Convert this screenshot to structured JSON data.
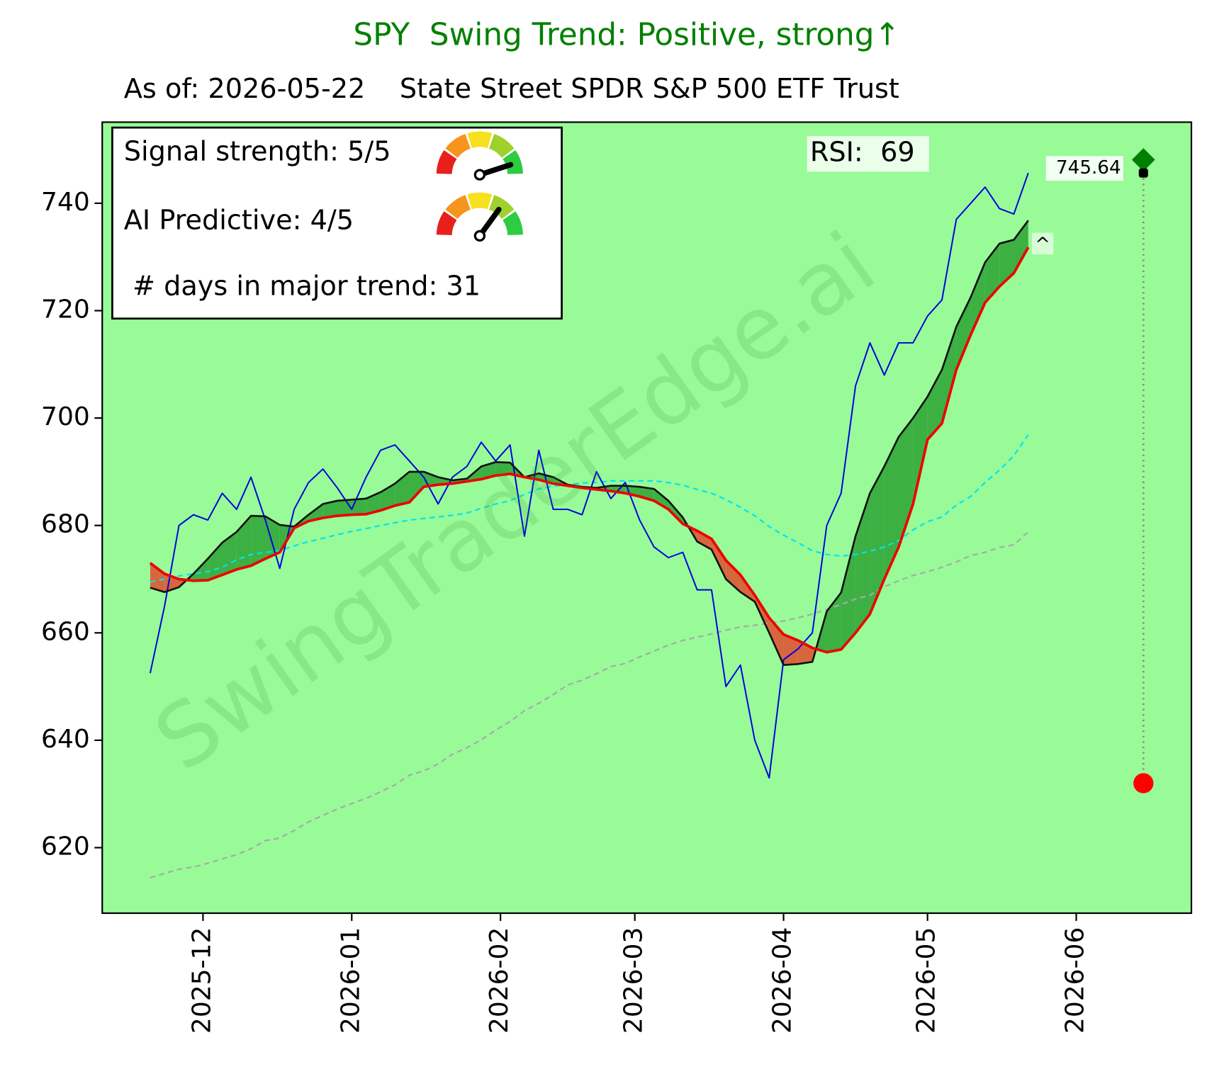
{
  "chart_data": {
    "type": "line",
    "title": "SPY  Swing Trend: Positive, strong↑",
    "title_color": "green",
    "subtitle": "As of: 2026-05-22    State Street SPDR S&P 500 ETF Trust",
    "watermark": "SwingTraderEdge.ai",
    "facecolor": "#98fb98",
    "xlim": [
      20402,
      20629
    ],
    "xticks": [
      {
        "value": 20423,
        "label": "2025-12"
      },
      {
        "value": 20454,
        "label": "2026-01"
      },
      {
        "value": 20485,
        "label": "2026-02"
      },
      {
        "value": 20513,
        "label": "2026-03"
      },
      {
        "value": 20544,
        "label": "2026-04"
      },
      {
        "value": 20574,
        "label": "2026-05"
      },
      {
        "value": 20605,
        "label": "2026-06"
      }
    ],
    "ylim": [
      607.8,
      755.1
    ],
    "yticks": [
      620,
      640,
      660,
      680,
      700,
      720,
      740
    ],
    "x": [
      20412,
      20415,
      20418,
      20421,
      20424,
      20427,
      20430,
      20433,
      20436,
      20439,
      20442,
      20445,
      20448,
      20451,
      20454,
      20457,
      20460,
      20463,
      20466,
      20469,
      20472,
      20475,
      20478,
      20481,
      20484,
      20487,
      20490,
      20493,
      20496,
      20499,
      20502,
      20505,
      20508,
      20511,
      20514,
      20517,
      20520,
      20523,
      20526,
      20529,
      20532,
      20535,
      20538,
      20541,
      20544,
      20547,
      20550,
      20553,
      20556,
      20559,
      20562,
      20565,
      20568,
      20571,
      20574,
      20577,
      20580,
      20583,
      20586,
      20589,
      20592,
      20595
    ],
    "series": [
      {
        "color": "#0000dd",
        "linestyle": "solid",
        "values": [
          652.5,
          665,
          680,
          682,
          681,
          686,
          683,
          689,
          681,
          672,
          683,
          688,
          690.5,
          687,
          683,
          689,
          694,
          695,
          692,
          689,
          684,
          689,
          691,
          695.5,
          692,
          695,
          678,
          694,
          683,
          683,
          682,
          690,
          685,
          688,
          681,
          676,
          674,
          675,
          668,
          668,
          650,
          654,
          640,
          633,
          655,
          657,
          660,
          680,
          686,
          706,
          714,
          708,
          714,
          714,
          719,
          722,
          737,
          740,
          743,
          739,
          738,
          745.64
        ]
      },
      {
        "color": "#111111",
        "linestyle": "solid",
        "values": [
          668.4,
          667.6,
          668.5,
          671,
          673.8,
          676.8,
          678.8,
          681.8,
          681.7,
          680.1,
          679.8,
          682,
          684,
          684.6,
          684.8,
          685,
          686.2,
          687.8,
          690,
          690,
          689,
          688.4,
          688.7,
          691,
          691.8,
          691.7,
          689,
          689.7,
          689,
          687.6,
          687.2,
          687,
          687.4,
          687.4,
          687.2,
          686.8,
          684.6,
          681.5,
          677,
          675.5,
          670,
          667.6,
          665.8,
          660,
          654,
          654.2,
          654.6,
          664,
          667.5,
          678,
          686,
          691,
          696.5,
          700,
          704,
          709,
          717,
          722.5,
          729,
          732.5,
          733.2,
          736.8
        ]
      },
      {
        "color": "#ee0000",
        "linestyle": "solid",
        "values": [
          673,
          671,
          670,
          669.7,
          669.8,
          670.8,
          671.8,
          672.5,
          673.8,
          675,
          679.5,
          680.8,
          681.4,
          681.8,
          682,
          682.1,
          682.8,
          683.7,
          684.3,
          687.2,
          687.6,
          687.8,
          688.2,
          688.6,
          689.3,
          689.6,
          689,
          688.5,
          687.8,
          687.4,
          687,
          686.7,
          686.4,
          686,
          685.4,
          684.6,
          683,
          680.3,
          679,
          677.5,
          673.5,
          670.8,
          667,
          662.8,
          659.7,
          658.6,
          657.2,
          656.4,
          656.9,
          660,
          663.5,
          670,
          676,
          684,
          696,
          699,
          709,
          715.5,
          721.5,
          724.5,
          727,
          731.8
        ]
      },
      {
        "color": "#00e5ee",
        "linestyle": "dashed",
        "values": [
          669.5,
          670,
          670.6,
          671,
          671.4,
          672.2,
          673.6,
          674.6,
          675,
          675.3,
          676.2,
          677,
          677.6,
          678.3,
          678.9,
          679.4,
          680,
          680.5,
          681,
          681.3,
          681.6,
          681.9,
          682.3,
          683.2,
          684,
          684.6,
          685.8,
          686.8,
          687.3,
          687.6,
          687.9,
          688,
          688.3,
          688.3,
          688.3,
          688.3,
          688,
          687.5,
          686.7,
          686,
          684.8,
          683.4,
          681.8,
          679.8,
          678.2,
          676.8,
          675.3,
          674.6,
          674.3,
          674.6,
          675.2,
          676,
          677.2,
          679.2,
          680.7,
          681.6,
          683.8,
          685.4,
          688,
          690.3,
          693,
          696.9
        ]
      },
      {
        "color": "#a9a9a9",
        "linestyle": "dashed",
        "values": [
          614.4,
          615.2,
          616,
          616.4,
          617.1,
          617.9,
          618.7,
          619.8,
          621.3,
          621.8,
          623.2,
          624.8,
          626,
          627.2,
          628.2,
          629.2,
          630.4,
          631.7,
          633.5,
          634.3,
          635.6,
          637.4,
          638.6,
          640.1,
          641.9,
          643.5,
          645.5,
          646.9,
          648.5,
          650.3,
          651.2,
          652.4,
          653.7,
          654.3,
          655.5,
          656.6,
          657.7,
          658.6,
          659.2,
          659.8,
          660.5,
          661.1,
          661.4,
          661.8,
          662.2,
          662.8,
          663.5,
          664.4,
          665.3,
          666.3,
          667,
          668.6,
          669.7,
          670.7,
          671.4,
          672.2,
          673.2,
          674.4,
          675,
          675.9,
          676.4,
          678.8
        ]
      }
    ],
    "fill_above_color": "#3cb043",
    "fill_below_color": "#d6663e",
    "info_box": [
      {
        "text": "Signal strength: 5/5",
        "gauge": {
          "value": 5,
          "max": 5
        }
      },
      {
        "text": "AI Predictive: 4/5",
        "gauge": {
          "value": 4,
          "max": 5
        }
      },
      {
        "text": " # days in major trend: 31"
      }
    ],
    "rsi": "RSI:  69",
    "caret": {
      "text": "^",
      "x": 20598,
      "y": 732.5
    },
    "last_price": {
      "x": 20619,
      "value": 745.64
    },
    "target": {
      "x": 20619,
      "value": 748.1,
      "color": "green"
    },
    "stop": {
      "x": 20619,
      "value": 632,
      "color": "red"
    }
  }
}
